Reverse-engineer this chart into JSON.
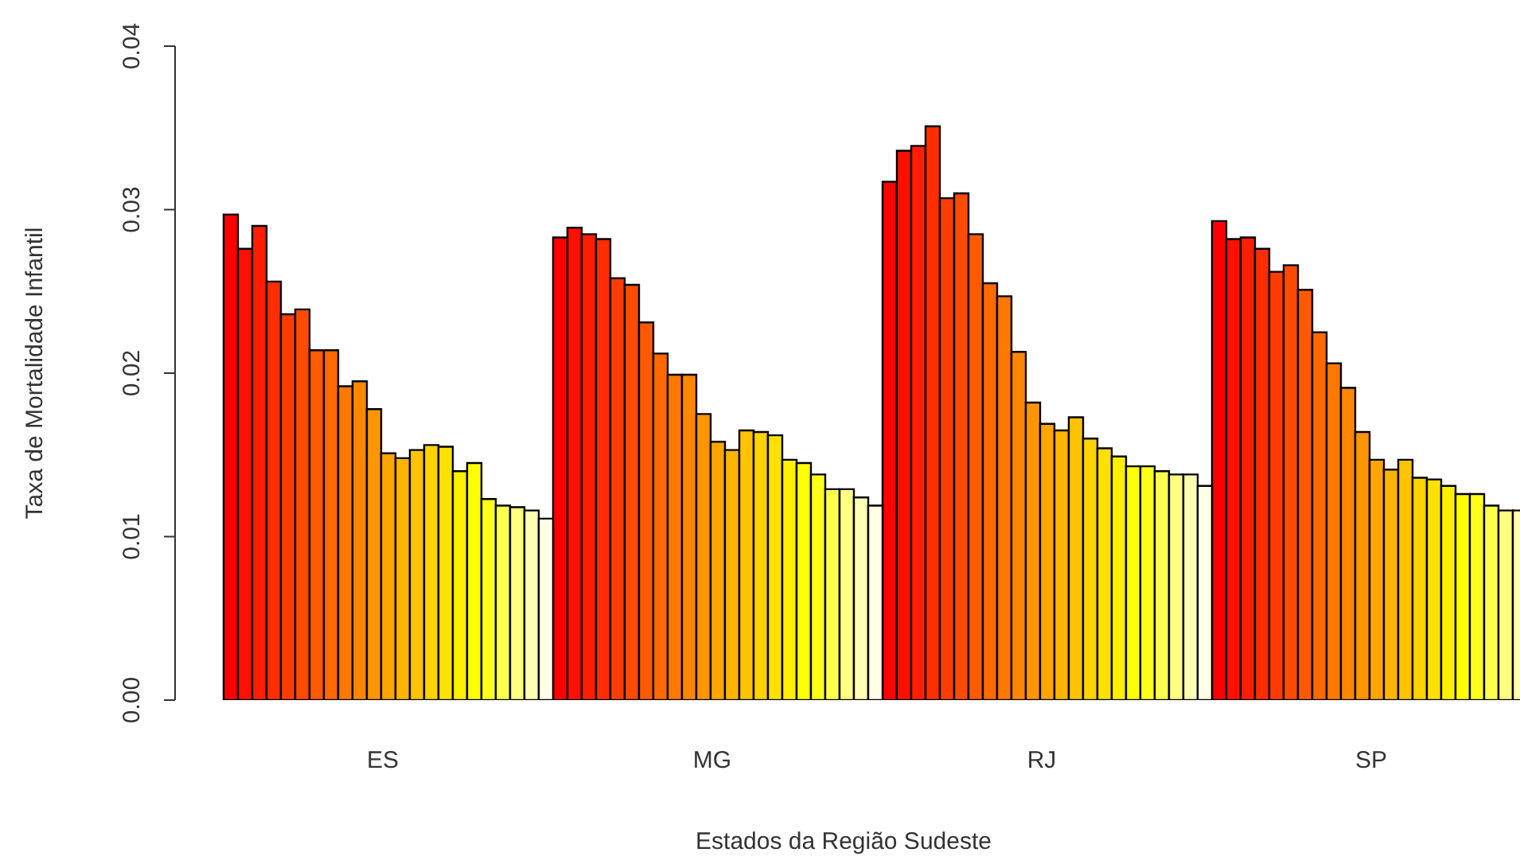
{
  "chart_data": {
    "type": "bar",
    "xlabel": "Estados da Região Sudeste",
    "ylabel": "Taxa de Mortalidade Infantil",
    "categories": [
      "ES",
      "MG",
      "RJ",
      "SP"
    ],
    "ylim": [
      0,
      0.04
    ],
    "yticks": [
      {
        "value": 0,
        "label": "0.00"
      },
      0.01,
      0.02,
      0.03,
      0.04
    ],
    "series": [
      {
        "color": "#ff0000",
        "values": [
          0.0297,
          0.0283,
          0.0317,
          0.0293
        ]
      },
      {
        "color": "#ff0f00",
        "values": [
          0.0276,
          0.0289,
          0.0336,
          0.0282
        ]
      },
      {
        "color": "#ff1e00",
        "values": [
          0.029,
          0.0285,
          0.0339,
          0.0283
        ]
      },
      {
        "color": "#ff2d00",
        "values": [
          0.0256,
          0.0282,
          0.0351,
          0.0276
        ]
      },
      {
        "color": "#ff3c00",
        "values": [
          0.0236,
          0.0258,
          0.0307,
          0.0262
        ]
      },
      {
        "color": "#ff4b00",
        "values": [
          0.0239,
          0.0254,
          0.031,
          0.0266
        ]
      },
      {
        "color": "#ff5a00",
        "values": [
          0.0214,
          0.0231,
          0.0285,
          0.0251
        ]
      },
      {
        "color": "#ff6900",
        "values": [
          0.0214,
          0.0212,
          0.0255,
          0.0225
        ]
      },
      {
        "color": "#ff7800",
        "values": [
          0.0192,
          0.0199,
          0.0247,
          0.0206
        ]
      },
      {
        "color": "#ff8700",
        "values": [
          0.0195,
          0.0199,
          0.0213,
          0.0191
        ]
      },
      {
        "color": "#ff9600",
        "values": [
          0.0178,
          0.0175,
          0.0182,
          0.0164
        ]
      },
      {
        "color": "#ffa500",
        "values": [
          0.0151,
          0.0158,
          0.0169,
          0.0147
        ]
      },
      {
        "color": "#ffb400",
        "values": [
          0.0148,
          0.0153,
          0.0165,
          0.0141
        ]
      },
      {
        "color": "#ffc300",
        "values": [
          0.0153,
          0.0165,
          0.0173,
          0.0147
        ]
      },
      {
        "color": "#ffd200",
        "values": [
          0.0156,
          0.0164,
          0.016,
          0.0136
        ]
      },
      {
        "color": "#ffe100",
        "values": [
          0.0155,
          0.0162,
          0.0154,
          0.0135
        ]
      },
      {
        "color": "#fff000",
        "values": [
          0.014,
          0.0147,
          0.0149,
          0.0131
        ]
      },
      {
        "color": "#ffff00",
        "values": [
          0.0145,
          0.0145,
          0.0143,
          0.0126
        ]
      },
      {
        "color": "#ffff1a",
        "values": [
          0.0123,
          0.0138,
          0.0143,
          0.0126
        ]
      },
      {
        "color": "#ffff4d",
        "values": [
          0.0119,
          0.0129,
          0.014,
          0.0119
        ]
      },
      {
        "color": "#ffff80",
        "values": [
          0.0118,
          0.0129,
          0.0138,
          0.0116
        ]
      },
      {
        "color": "#ffffb3",
        "values": [
          0.0116,
          0.0124,
          0.0138,
          0.0116
        ]
      },
      {
        "color": "#ffffe6",
        "values": [
          0.0111,
          0.0119,
          0.0131,
          null
        ]
      }
    ]
  }
}
